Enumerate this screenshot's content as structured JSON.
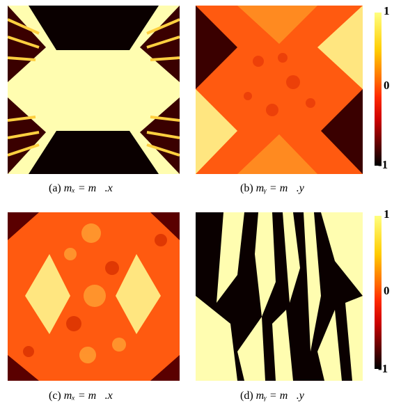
{
  "panels": [
    {
      "id": "a",
      "caption_tag": "(a)",
      "caption_formula": "mₓ = m⃗.x⃗",
      "pattern": "mx-uniform-domains"
    },
    {
      "id": "b",
      "caption_tag": "(b)",
      "caption_formula": "mᵧ = m⃗.y⃗",
      "pattern": "my-uniform-domains"
    },
    {
      "id": "c",
      "caption_tag": "(c)",
      "caption_formula": "mₓ = m⃗.x⃗",
      "pattern": "mx-disordered"
    },
    {
      "id": "d",
      "caption_tag": "(d)",
      "caption_formula": "mᵧ = m⃗.y⃗",
      "pattern": "my-stripes"
    }
  ],
  "colorbar": {
    "ticks": [
      "1",
      "0",
      "-1"
    ],
    "colors": [
      "#ffff80",
      "#ffcc00",
      "#ff6600",
      "#ff2a00",
      "#cc0000",
      "#660000",
      "#000000"
    ]
  }
}
